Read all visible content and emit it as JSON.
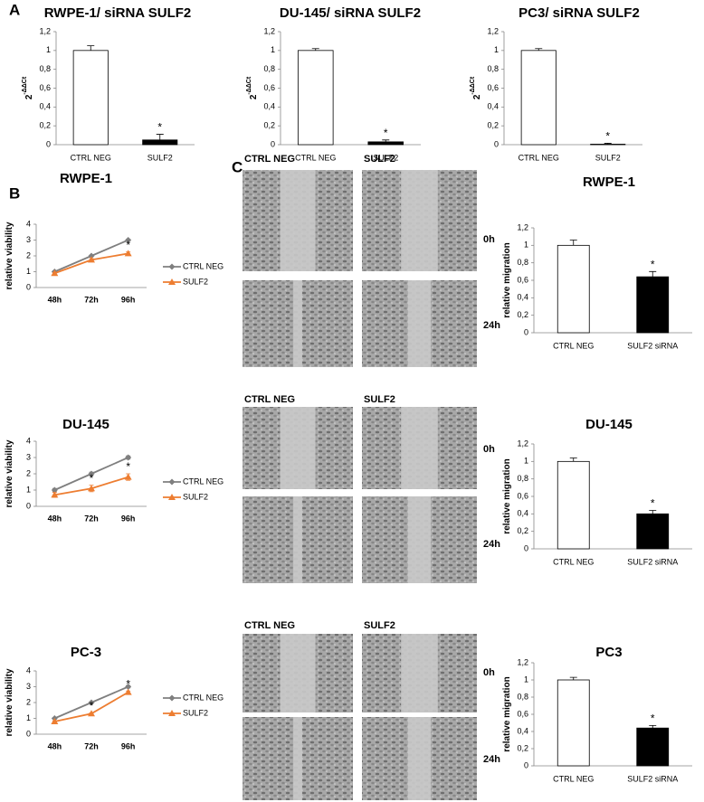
{
  "panel_labels": [
    "A",
    "B",
    "C"
  ],
  "micrographs": [
    {
      "columns": [
        "CTRL NEG",
        "SULF2"
      ],
      "rows": [
        "0h",
        "24h"
      ]
    },
    {
      "columns": [
        "CTRL NEG",
        "SULF2"
      ],
      "rows": [
        "0h",
        "24h"
      ]
    },
    {
      "columns": [
        "CTRL NEG",
        "SULF2"
      ],
      "rows": [
        "0h",
        "24h"
      ]
    }
  ],
  "chart_data": [
    {
      "type": "bar",
      "title": "RWPE-1/ siRNA SULF2",
      "ylabel": "2",
      "ylabel_sup": "-ΔΔCt",
      "categories": [
        "CTRL NEG",
        "SULF2"
      ],
      "values": [
        1,
        0.05
      ],
      "errors": [
        0.05,
        0.06
      ],
      "colors": [
        "#ffffff",
        "#000000"
      ],
      "annotations": [
        {
          "text": "*",
          "x": "SULF2"
        }
      ],
      "ylim": [
        0,
        1.2
      ],
      "yticks": [
        0,
        {
          "value": 0.2,
          "label": "0,2"
        },
        {
          "value": 0.4,
          "label": "0,4"
        },
        {
          "value": 0.6,
          "label": "0,6"
        },
        {
          "value": 0.8,
          "label": "0,8"
        },
        1,
        {
          "value": 1.2,
          "label": "1,2"
        }
      ]
    },
    {
      "type": "bar",
      "title": "DU-145/ siRNA SULF2",
      "ylabel": "2",
      "ylabel_sup": "-ΔΔCt",
      "categories": [
        "CTRL NEG",
        "SULF2"
      ],
      "values": [
        1,
        0.03
      ],
      "errors": [
        0.02,
        0.02
      ],
      "colors": [
        "#ffffff",
        "#000000"
      ],
      "annotations": [
        {
          "text": "*",
          "x": "SULF2"
        }
      ],
      "ylim": [
        0,
        1.2
      ],
      "yticks": [
        0,
        {
          "value": 0.2,
          "label": "0,2"
        },
        {
          "value": 0.4,
          "label": "0,4"
        },
        {
          "value": 0.6,
          "label": "0,6"
        },
        {
          "value": 0.8,
          "label": "0,8"
        },
        1,
        {
          "value": 1.2,
          "label": "1,2"
        }
      ]
    },
    {
      "type": "bar",
      "title": "PC3/ siRNA SULF2",
      "ylabel": "2",
      "ylabel_sup": "-ΔΔCt",
      "categories": [
        "CTRL NEG",
        "SULF2"
      ],
      "values": [
        1,
        0.005
      ],
      "errors": [
        0.02,
        0.01
      ],
      "colors": [
        "#ffffff",
        "#000000"
      ],
      "annotations": [
        {
          "text": "*",
          "x": "SULF2"
        }
      ],
      "ylim": [
        0,
        1.2
      ],
      "yticks": [
        0,
        {
          "value": 0.2,
          "label": "0,2"
        },
        {
          "value": 0.4,
          "label": "0,4"
        },
        {
          "value": 0.6,
          "label": "0,6"
        },
        {
          "value": 0.8,
          "label": "0,8"
        },
        1,
        {
          "value": 1.2,
          "label": "1,2"
        }
      ]
    },
    {
      "type": "line",
      "title": "RWPE-1",
      "ylabel": "relative viability",
      "categories": [
        "48h",
        "72h",
        "96h"
      ],
      "series": [
        {
          "name": "CTRL NEG",
          "color": "#7f7f7f",
          "marker": "diamond",
          "values": [
            1,
            2,
            3
          ],
          "errors": [
            0.05,
            0.05,
            0.05
          ]
        },
        {
          "name": "SULF2",
          "color": "#ed7d31",
          "marker": "triangle",
          "values": [
            0.9,
            1.75,
            2.15
          ],
          "errors": [
            0.05,
            0.08,
            0.1
          ]
        }
      ],
      "annotations": [
        {
          "text": "*",
          "x": "96h",
          "series": "SULF2"
        }
      ],
      "ylim": [
        0,
        4
      ],
      "yticks": [
        0,
        1,
        2,
        3,
        4
      ],
      "legend": "right"
    },
    {
      "type": "line",
      "title": "DU-145",
      "ylabel": "relative viability",
      "categories": [
        "48h",
        "72h",
        "96h"
      ],
      "series": [
        {
          "name": "CTRL NEG",
          "color": "#7f7f7f",
          "marker": "diamond",
          "values": [
            1,
            2,
            3
          ],
          "errors": [
            0.1,
            0.1,
            0.1
          ]
        },
        {
          "name": "SULF2",
          "color": "#ed7d31",
          "marker": "triangle",
          "values": [
            0.7,
            1.1,
            1.8
          ],
          "errors": [
            0.15,
            0.2,
            0.2
          ]
        }
      ],
      "annotations": [
        {
          "text": "*",
          "x": "72h",
          "series": "SULF2"
        },
        {
          "text": "*",
          "x": "96h",
          "series": "SULF2"
        }
      ],
      "ylim": [
        0,
        4
      ],
      "yticks": [
        0,
        1,
        2,
        3,
        4
      ],
      "legend": "right"
    },
    {
      "type": "line",
      "title": "PC-3",
      "ylabel": "relative viability",
      "categories": [
        "48h",
        "72h",
        "96h"
      ],
      "series": [
        {
          "name": "CTRL NEG",
          "color": "#7f7f7f",
          "marker": "diamond",
          "values": [
            1,
            2,
            3
          ],
          "errors": [
            0.05,
            0.05,
            0.08
          ]
        },
        {
          "name": "SULF2",
          "color": "#ed7d31",
          "marker": "triangle",
          "values": [
            0.8,
            1.3,
            2.65
          ],
          "errors": [
            0.05,
            0.05,
            0.08
          ]
        }
      ],
      "annotations": [
        {
          "text": "*",
          "x": "72h",
          "series": "SULF2"
        },
        {
          "text": "*",
          "x": "96h",
          "series": "SULF2"
        }
      ],
      "ylim": [
        0,
        4
      ],
      "yticks": [
        0,
        1,
        2,
        3,
        4
      ],
      "legend": "right"
    },
    {
      "type": "bar",
      "title": "RWPE-1",
      "ylabel": "relative migration",
      "categories": [
        "CTRL NEG",
        "SULF2 siRNA"
      ],
      "values": [
        1,
        0.64
      ],
      "errors": [
        0.06,
        0.06
      ],
      "colors": [
        "#ffffff",
        "#000000"
      ],
      "annotations": [
        {
          "text": "*",
          "x": "SULF2 siRNA"
        }
      ],
      "ylim": [
        0,
        1.2
      ],
      "yticks": [
        0,
        {
          "value": 0.2,
          "label": "0,2"
        },
        {
          "value": 0.4,
          "label": "0,4"
        },
        {
          "value": 0.6,
          "label": "0,6"
        },
        {
          "value": 0.8,
          "label": "0,8"
        },
        1,
        {
          "value": 1.2,
          "label": "1,2"
        }
      ]
    },
    {
      "type": "bar",
      "title": "DU-145",
      "ylabel": "relative migration",
      "categories": [
        "CTRL NEG",
        "SULF2 siRNA"
      ],
      "values": [
        1,
        0.4
      ],
      "errors": [
        0.04,
        0.04
      ],
      "colors": [
        "#ffffff",
        "#000000"
      ],
      "annotations": [
        {
          "text": "*",
          "x": "SULF2 siRNA"
        }
      ],
      "ylim": [
        0,
        1.2
      ],
      "yticks": [
        0,
        {
          "value": 0.2,
          "label": "0,2"
        },
        {
          "value": 0.4,
          "label": "0,4"
        },
        {
          "value": 0.6,
          "label": "0,6"
        },
        {
          "value": 0.8,
          "label": "0,8"
        },
        1,
        {
          "value": 1.2,
          "label": "1,2"
        }
      ]
    },
    {
      "type": "bar",
      "title": "PC3",
      "ylabel": "relative migration",
      "categories": [
        "CTRL NEG",
        "SULF2 siRNA"
      ],
      "values": [
        1,
        0.44
      ],
      "errors": [
        0.03,
        0.03
      ],
      "colors": [
        "#ffffff",
        "#000000"
      ],
      "annotations": [
        {
          "text": "*",
          "x": "SULF2 siRNA"
        }
      ],
      "ylim": [
        0,
        1.2
      ],
      "yticks": [
        0,
        {
          "value": 0.2,
          "label": "0,2"
        },
        {
          "value": 0.4,
          "label": "0,4"
        },
        {
          "value": 0.6,
          "label": "0,6"
        },
        {
          "value": 0.8,
          "label": "0,8"
        },
        1,
        {
          "value": 1.2,
          "label": "1,2"
        }
      ]
    }
  ]
}
